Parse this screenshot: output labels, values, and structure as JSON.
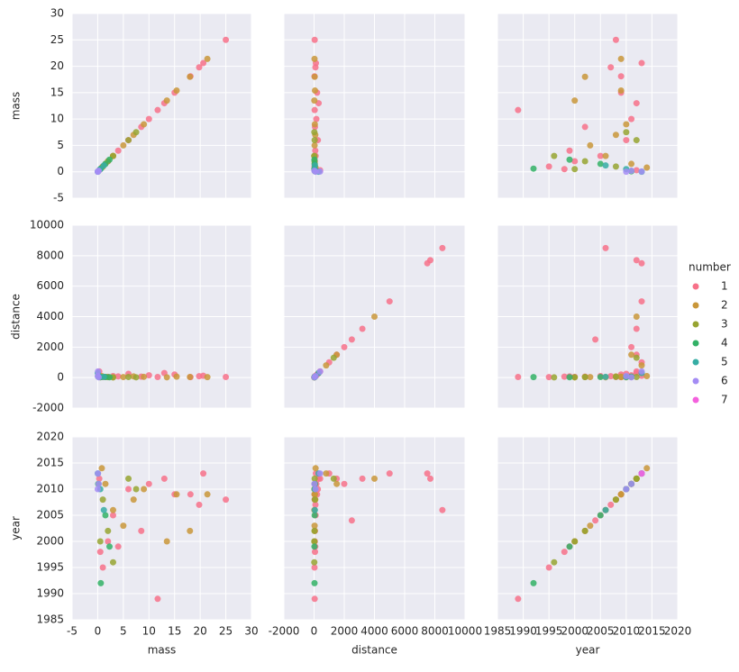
{
  "chart_data": {
    "type": "scatter",
    "variables": [
      {
        "name": "mass",
        "lim": [
          -5,
          30
        ],
        "ticks": [
          -5,
          0,
          5,
          10,
          15,
          20,
          25,
          30
        ]
      },
      {
        "name": "distance",
        "lim": [
          -2000,
          10000
        ],
        "ticks": [
          -2000,
          0,
          2000,
          4000,
          6000,
          8000,
          10000
        ]
      },
      {
        "name": "year",
        "lim": [
          1985,
          2020
        ],
        "ticks": [
          1985,
          1990,
          1995,
          2000,
          2005,
          2010,
          2015,
          2020
        ]
      }
    ],
    "grid": true,
    "legend_title": "number",
    "legend": "right",
    "series": [
      {
        "name": "1",
        "color": "#f77189",
        "points": [
          [
            25,
            40,
            2008
          ],
          [
            20.6,
            120,
            2013
          ],
          [
            19.8,
            90,
            2007
          ],
          [
            18.1,
            30,
            2009
          ],
          [
            11.7,
            40,
            1989
          ],
          [
            15,
            200,
            2009
          ],
          [
            13,
            300,
            2012
          ],
          [
            10,
            150,
            2011
          ],
          [
            8.5,
            60,
            2002
          ],
          [
            6,
            250,
            2010
          ],
          [
            4,
            80,
            1999
          ],
          [
            3,
            100,
            2005
          ],
          [
            2,
            50,
            2000
          ],
          [
            1,
            30,
            1995
          ],
          [
            0.5,
            60,
            1998
          ],
          [
            0.3,
            400,
            2012
          ],
          [
            null,
            8500,
            2006
          ],
          [
            null,
            7700,
            2012
          ],
          [
            null,
            7500,
            2013
          ],
          [
            null,
            5000,
            2013
          ],
          [
            null,
            3200,
            2012
          ],
          [
            null,
            2500,
            2004
          ],
          [
            null,
            2000,
            2011
          ],
          [
            null,
            1500,
            2012
          ],
          [
            null,
            1000,
            2013
          ]
        ]
      },
      {
        "name": "2",
        "color": "#c9973a",
        "points": [
          [
            21.4,
            30,
            2009
          ],
          [
            18,
            40,
            2002
          ],
          [
            15.4,
            60,
            2009
          ],
          [
            13.5,
            20,
            2000
          ],
          [
            9,
            50,
            2010
          ],
          [
            7,
            80,
            2008
          ],
          [
            5,
            35,
            2003
          ],
          [
            3,
            20,
            2006
          ],
          [
            1.5,
            40,
            2011
          ],
          [
            0.8,
            100,
            2014
          ],
          [
            null,
            4000,
            2012
          ],
          [
            null,
            1500,
            2011
          ],
          [
            null,
            800,
            2013
          ]
        ]
      },
      {
        "name": "3",
        "color": "#97a431",
        "points": [
          [
            7.5,
            20,
            2010
          ],
          [
            6,
            40,
            2012
          ],
          [
            3,
            15,
            1996
          ],
          [
            2,
            30,
            2002
          ],
          [
            1,
            50,
            2008
          ],
          [
            0.5,
            20,
            2000
          ],
          [
            null,
            1300,
            2012
          ]
        ]
      },
      {
        "name": "4",
        "color": "#32b166",
        "points": [
          [
            2.3,
            25,
            1999
          ],
          [
            1.5,
            40,
            2005
          ],
          [
            0.6,
            30,
            1992
          ],
          [
            0.1,
            60,
            2011
          ]
        ]
      },
      {
        "name": "5",
        "color": "#36ada4",
        "points": [
          [
            1.2,
            50,
            2006
          ],
          [
            0.5,
            40,
            2010
          ],
          [
            0.02,
            300,
            2013
          ]
        ]
      },
      {
        "name": "6",
        "color": "#a48cf4",
        "points": [
          [
            0.2,
            20,
            2011
          ],
          [
            0.05,
            400,
            2013
          ],
          [
            0.01,
            100,
            2010
          ]
        ]
      },
      {
        "name": "7",
        "color": "#f461dd",
        "points": [
          [
            null,
            null,
            2013
          ]
        ]
      }
    ]
  }
}
